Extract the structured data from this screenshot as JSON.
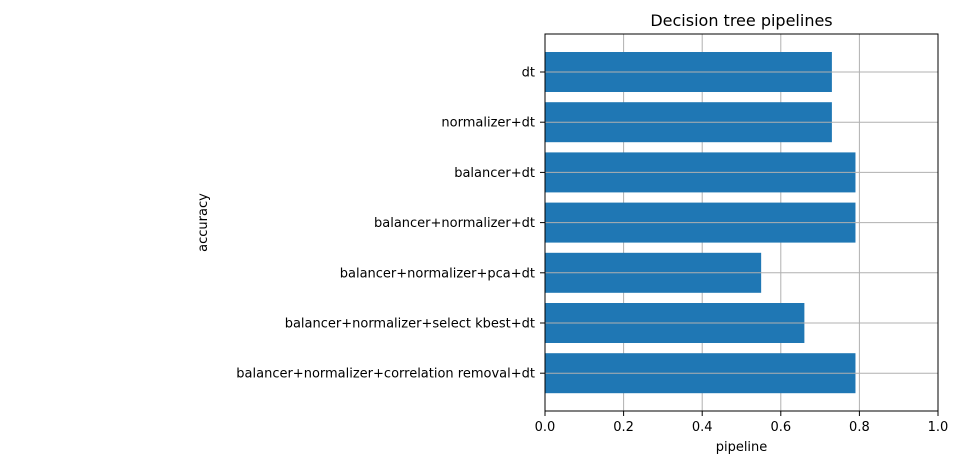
{
  "chart_data": {
    "type": "bar",
    "orientation": "horizontal",
    "title": "Decision tree pipelines",
    "xlabel": "pipeline",
    "ylabel": "accuracy",
    "categories": [
      "dt",
      "normalizer+dt",
      "balancer+dt",
      "balancer+normalizer+dt",
      "balancer+normalizer+pca+dt",
      "balancer+normalizer+select kbest+dt",
      "balancer+normalizer+correlation removal+dt"
    ],
    "values": [
      0.73,
      0.73,
      0.79,
      0.79,
      0.55,
      0.66,
      0.79
    ],
    "xlim": [
      0.0,
      1.0
    ],
    "xticks": [
      "0.0",
      "0.2",
      "0.4",
      "0.6",
      "0.8",
      "1.0"
    ],
    "grid": true,
    "colors": {
      "bar": "#1f77b4",
      "grid": "#b0b0b0",
      "axis": "#000000"
    }
  }
}
